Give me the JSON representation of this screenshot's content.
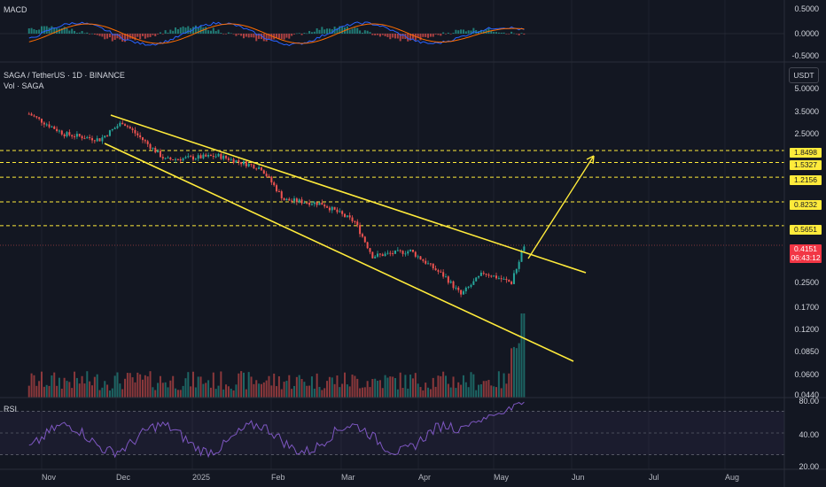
{
  "macd_panel": {
    "title": "MACD",
    "ticks": [
      "0.5000",
      "0.0000",
      "-0.5000"
    ]
  },
  "main_panel": {
    "symbol_line": "SAGA / TetherUS · 1D · BINANCE",
    "volume_line": "Vol · SAGA",
    "unit": "USDT",
    "ticks": [
      "5.0000",
      "3.5000",
      "2.5000",
      "0.2500",
      "0.1700",
      "0.1200",
      "0.0850",
      "0.0600",
      "0.0440"
    ],
    "levels": [
      "1.8498",
      "1.5327",
      "1.2156",
      "0.8232",
      "0.5651"
    ],
    "current_price": "0.4151",
    "countdown": "06:43:12"
  },
  "rsi_panel": {
    "title": "RSI",
    "ticks": [
      "80.00",
      "40.00",
      "20.00"
    ]
  },
  "x_axis": [
    "Nov",
    "Dec",
    "2025",
    "Feb",
    "Mar",
    "Apr",
    "May",
    "Jun",
    "Jul",
    "Aug"
  ],
  "colors": {
    "up": "#26a69a",
    "down": "#ef5350",
    "lines": "#ffeb3b",
    "rsi": "#7e57c2",
    "macd": "#2962ff",
    "signal": "#ff6d00"
  },
  "chart_data": {
    "type": "candlestick",
    "pair": "SAGA/USDT",
    "interval": "1D",
    "y_scale": "log",
    "horizontal_levels": [
      1.8498,
      1.5327,
      1.2156,
      0.8232,
      0.5651
    ],
    "last_price": 0.4151,
    "trendlines": "descending channel (falling wedge) with upward breakout arrow",
    "close_path": [
      {
        "x": "Oct 27",
        "y": 3.3
      },
      {
        "x": "Nov 10",
        "y": 2.4
      },
      {
        "x": "Nov 24",
        "y": 2.2
      },
      {
        "x": "Dec 3",
        "y": 2.9
      },
      {
        "x": "Dec 20",
        "y": 1.6
      },
      {
        "x": "Jan 10",
        "y": 1.7
      },
      {
        "x": "Jan 27",
        "y": 1.4
      },
      {
        "x": "Feb 5",
        "y": 0.85
      },
      {
        "x": "Feb 20",
        "y": 0.8
      },
      {
        "x": "Mar 5",
        "y": 0.6
      },
      {
        "x": "Mar 12",
        "y": 0.35
      },
      {
        "x": "Mar 27",
        "y": 0.38
      },
      {
        "x": "Apr 10",
        "y": 0.25
      },
      {
        "x": "Apr 16",
        "y": 0.19
      },
      {
        "x": "Apr 25",
        "y": 0.27
      },
      {
        "x": "May 6",
        "y": 0.23
      },
      {
        "x": "May 11",
        "y": 0.4151
      }
    ]
  }
}
